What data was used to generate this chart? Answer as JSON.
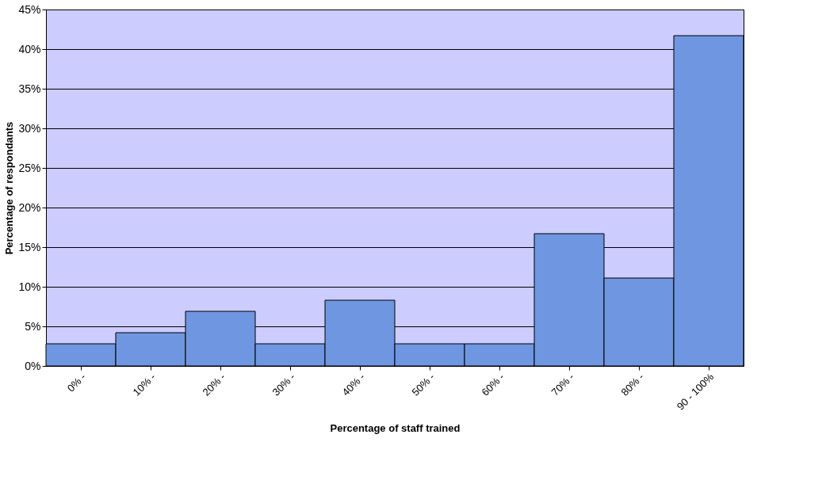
{
  "chart_data": {
    "type": "bar",
    "xlabel": "Percentage of staff trained",
    "ylabel": "Percentage of respondants",
    "categories": [
      "0% -",
      "10% -",
      "20% -",
      "30% -",
      "40% -",
      "50% -",
      "60% -",
      "70% -",
      "80% -",
      "90 - 100%"
    ],
    "values": [
      2.8,
      4.2,
      6.9,
      2.8,
      8.3,
      2.8,
      2.8,
      16.7,
      11.1,
      41.7
    ],
    "color": "#6f96e0",
    "ylim": [
      0,
      45
    ],
    "yticks": [
      {
        "value": 0,
        "label": "0%"
      },
      {
        "value": 5,
        "label": "5%"
      },
      {
        "value": 10,
        "label": "10%"
      },
      {
        "value": 15,
        "label": "15%"
      },
      {
        "value": 20,
        "label": "20%"
      },
      {
        "value": 25,
        "label": "25%"
      },
      {
        "value": 30,
        "label": "30%"
      },
      {
        "value": 35,
        "label": "35%"
      },
      {
        "value": 40,
        "label": "40%"
      },
      {
        "value": 45,
        "label": "45%"
      }
    ],
    "grid": "y"
  }
}
